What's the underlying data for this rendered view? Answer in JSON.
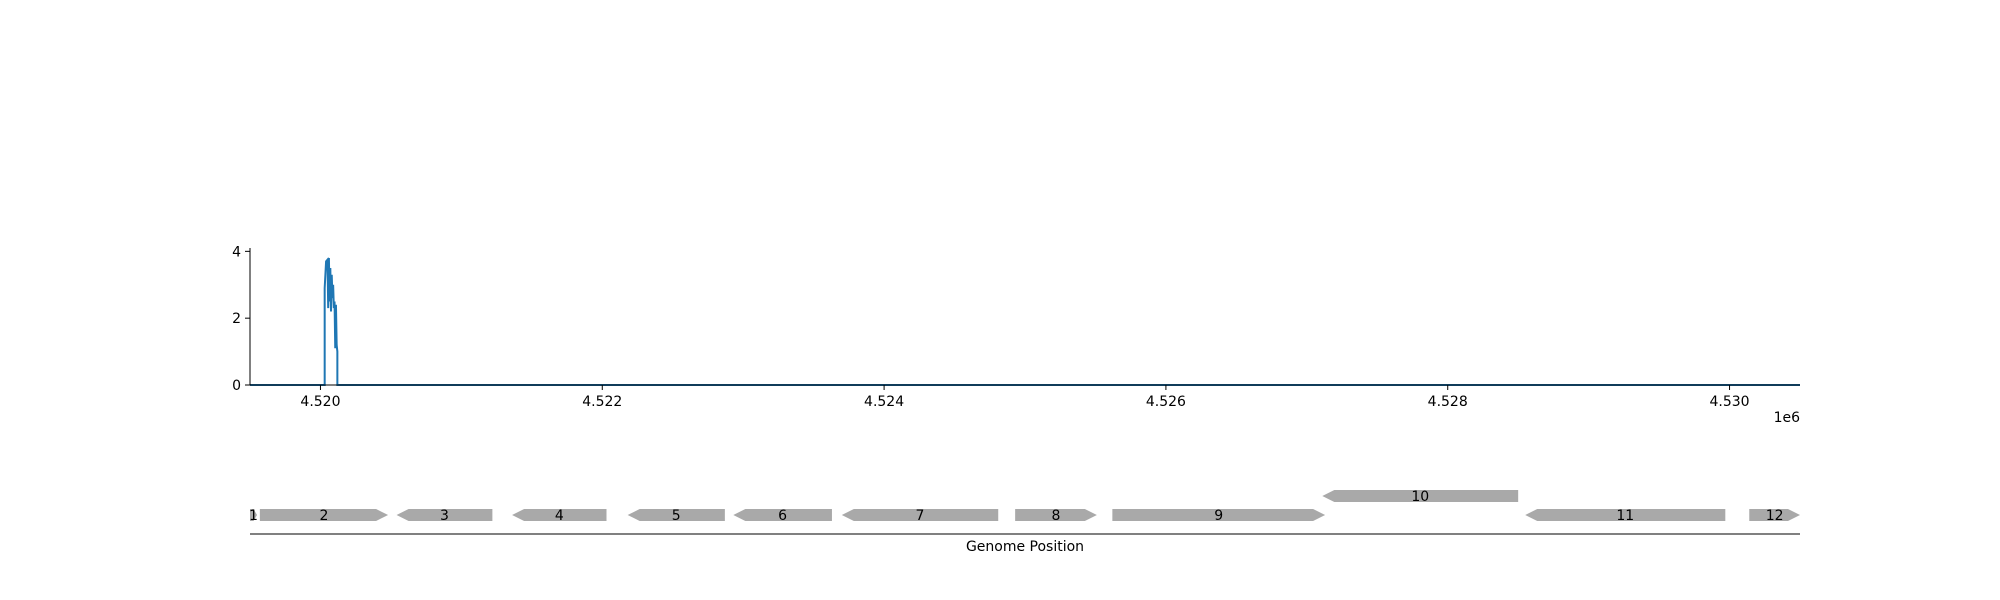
{
  "chart_data": [
    {
      "type": "line",
      "title": "",
      "xlabel": "",
      "ylabel": "",
      "offset_label": "1e6",
      "xlim": [
        4519500,
        4530500
      ],
      "ylim": [
        0,
        4.1
      ],
      "x_ticks": [
        4520000,
        4522000,
        4524000,
        4526000,
        4528000,
        4530000
      ],
      "x_tick_labels": [
        "4.520",
        "4.522",
        "4.524",
        "4.526",
        "4.528",
        "4.530"
      ],
      "y_ticks": [
        0,
        2,
        4
      ],
      "y_tick_labels": [
        "0",
        "2",
        "4"
      ],
      "color": "#1f77b4",
      "series": [
        {
          "x": [
            4519500,
            4520030,
            4520030,
            4520040,
            4520050,
            4520055,
            4520060,
            4520065,
            4520070,
            4520075,
            4520080,
            4520085,
            4520090,
            4520095,
            4520100,
            4520105,
            4520110,
            4520115,
            4520120,
            4520120,
            4530500
          ],
          "y": [
            0,
            0,
            2.9,
            3.7,
            3.75,
            2.3,
            3.8,
            2.5,
            3.5,
            2.2,
            3.3,
            2.6,
            3.0,
            2.3,
            2.5,
            1.1,
            2.4,
            1.2,
            1.0,
            0,
            0
          ]
        }
      ]
    },
    {
      "type": "gene_track",
      "xlabel": "Genome Position",
      "genes": [
        {
          "label": "1",
          "start": 4519500,
          "end": 4519550,
          "strand": "+",
          "row": 0
        },
        {
          "label": "2",
          "start": 4519570,
          "end": 4520480,
          "strand": "+",
          "row": 0
        },
        {
          "label": "3",
          "start": 4520540,
          "end": 4521220,
          "strand": "-",
          "row": 0
        },
        {
          "label": "4",
          "start": 4521360,
          "end": 4522030,
          "strand": "-",
          "row": 0
        },
        {
          "label": "5",
          "start": 4522180,
          "end": 4522870,
          "strand": "-",
          "row": 0
        },
        {
          "label": "6",
          "start": 4522930,
          "end": 4523630,
          "strand": "-",
          "row": 0
        },
        {
          "label": "7",
          "start": 4523700,
          "end": 4524810,
          "strand": "-",
          "row": 0
        },
        {
          "label": "8",
          "start": 4524930,
          "end": 4525510,
          "strand": "+",
          "row": 0
        },
        {
          "label": "9",
          "start": 4525620,
          "end": 4527130,
          "strand": "+",
          "row": 0
        },
        {
          "label": "10",
          "start": 4527110,
          "end": 4528500,
          "strand": "-",
          "row": 1
        },
        {
          "label": "11",
          "start": 4528550,
          "end": 4529970,
          "strand": "-",
          "row": 0
        },
        {
          "label": "12",
          "start": 4530140,
          "end": 4530500,
          "strand": "+",
          "row": 0
        }
      ],
      "color": "#a9a9a9"
    }
  ]
}
